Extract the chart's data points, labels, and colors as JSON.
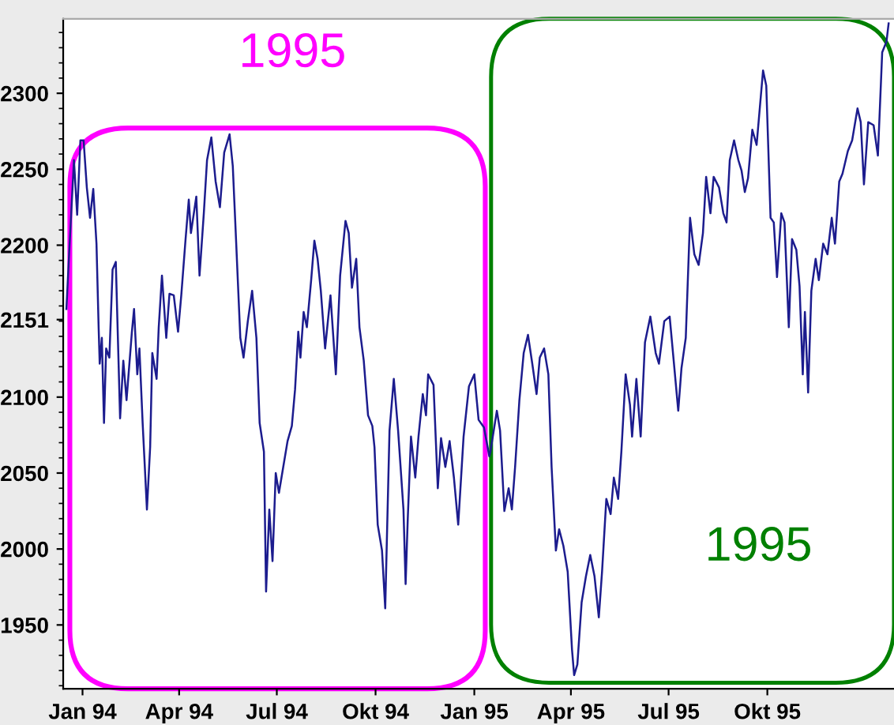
{
  "chart_data": {
    "type": "line",
    "x": [
      "1993-12-17",
      "1993-12-19",
      "1993-12-24",
      "1993-12-27",
      "1993-12-30",
      "1994-01-02",
      "1994-01-05",
      "1994-01-08",
      "1994-01-11",
      "1994-01-14",
      "1994-01-16",
      "1994-01-17",
      "1994-01-19",
      "1994-01-21",
      "1994-01-23",
      "1994-01-26",
      "1994-01-29",
      "1994-02-01",
      "1994-02-05",
      "1994-02-08",
      "1994-02-11",
      "1994-02-16",
      "1994-02-18",
      "1994-02-21",
      "1994-02-23",
      "1994-02-26",
      "1994-03-02",
      "1994-03-05",
      "1994-03-07",
      "1994-03-11",
      "1994-03-13",
      "1994-03-16",
      "1994-03-20",
      "1994-03-23",
      "1994-03-27",
      "1994-03-31",
      "1994-04-03",
      "1994-04-07",
      "1994-04-10",
      "1994-04-12",
      "1994-04-17",
      "1994-04-20",
      "1994-04-24",
      "1994-04-27",
      "1994-05-01",
      "1994-05-05",
      "1994-05-09",
      "1994-05-13",
      "1994-05-18",
      "1994-05-21",
      "1994-05-24",
      "1994-05-28",
      "1994-05-31",
      "1994-06-04",
      "1994-06-08",
      "1994-06-12",
      "1994-06-15",
      "1994-06-19",
      "1994-06-21",
      "1994-06-24",
      "1994-06-27",
      "1994-06-30",
      "1994-07-03",
      "1994-07-07",
      "1994-07-11",
      "1994-07-15",
      "1994-07-18",
      "1994-07-21",
      "1994-07-23",
      "1994-07-26",
      "1994-07-29",
      "1994-08-02",
      "1994-08-05",
      "1994-08-08",
      "1994-08-11",
      "1994-08-15",
      "1994-08-20",
      "1994-08-25",
      "1994-08-29",
      "1994-09-03",
      "1994-09-06",
      "1994-09-09",
      "1994-09-13",
      "1994-09-16",
      "1994-09-20",
      "1994-09-24",
      "1994-09-28",
      "1994-09-30",
      "1994-10-03",
      "1994-10-07",
      "1994-10-10",
      "1994-10-14",
      "1994-10-18",
      "1994-10-22",
      "1994-10-27",
      "1994-10-29",
      "1994-10-31",
      "1994-11-03",
      "1994-11-07",
      "1994-11-10",
      "1994-11-14",
      "1994-11-17",
      "1994-11-19",
      "1994-11-24",
      "1994-11-28",
      "1994-12-01",
      "1994-12-05",
      "1994-12-09",
      "1994-12-13",
      "1994-12-17",
      "1994-12-22",
      "1994-12-27",
      "1995-01-01",
      "1995-01-05",
      "1995-01-10",
      "1995-01-15",
      "1995-01-16",
      "1995-01-22",
      "1995-01-25",
      "1995-01-29",
      "1995-02-02",
      "1995-02-05",
      "1995-02-08",
      "1995-02-12",
      "1995-02-16",
      "1995-02-20",
      "1995-02-24",
      "1995-02-28",
      "1995-03-03",
      "1995-03-07",
      "1995-03-11",
      "1995-03-14",
      "1995-03-18",
      "1995-03-21",
      "1995-03-25",
      "1995-03-29",
      "1995-04-02",
      "1995-04-04",
      "1995-04-07",
      "1995-04-11",
      "1995-04-15",
      "1995-04-19",
      "1995-04-23",
      "1995-04-27",
      "1995-04-30",
      "1995-05-04",
      "1995-05-08",
      "1995-05-11",
      "1995-05-15",
      "1995-05-18",
      "1995-05-22",
      "1995-05-26",
      "1995-05-28",
      "1995-06-01",
      "1995-06-05",
      "1995-06-09",
      "1995-06-14",
      "1995-06-19",
      "1995-06-22",
      "1995-06-27",
      "1995-07-02",
      "1995-07-06",
      "1995-07-10",
      "1995-07-13",
      "1995-07-17",
      "1995-07-21",
      "1995-07-25",
      "1995-07-29",
      "1995-08-02",
      "1995-08-05",
      "1995-08-09",
      "1995-08-12",
      "1995-08-17",
      "1995-08-21",
      "1995-08-24",
      "1995-08-27",
      "1995-08-31",
      "1995-09-04",
      "1995-09-07",
      "1995-09-10",
      "1995-09-13",
      "1995-09-17",
      "1995-09-21",
      "1995-09-27",
      "1995-09-30",
      "1995-10-04",
      "1995-10-07",
      "1995-10-10",
      "1995-10-14",
      "1995-10-17",
      "1995-10-21",
      "1995-10-24",
      "1995-10-28",
      "1995-10-31",
      "1995-11-03",
      "1995-11-05",
      "1995-11-08",
      "1995-11-11",
      "1995-11-15",
      "1995-11-18",
      "1995-11-22",
      "1995-11-26",
      "1995-11-30",
      "1995-12-03",
      "1995-12-07",
      "1995-12-10",
      "1995-12-15",
      "1995-12-19",
      "1995-12-24",
      "1995-12-27",
      "1995-12-30",
      "1996-01-03",
      "1996-01-08",
      "1996-01-12",
      "1996-01-16",
      "1996-01-20",
      "1996-01-22"
    ],
    "series": [
      {
        "color": "#1c1c8e",
        "values": [
          2158,
          2187,
          2256,
          2220,
          2269,
          2269,
          2238,
          2218,
          2237,
          2201,
          2146,
          2122,
          2139,
          2083,
          2132,
          2126,
          2184,
          2189,
          2086,
          2124,
          2098,
          2143,
          2158,
          2115,
          2132,
          2083,
          2026,
          2067,
          2129,
          2112,
          2146,
          2180,
          2139,
          2168,
          2167,
          2143,
          2167,
          2204,
          2230,
          2208,
          2232,
          2180,
          2221,
          2256,
          2271,
          2242,
          2225,
          2261,
          2273,
          2252,
          2204,
          2139,
          2126,
          2150,
          2170,
          2139,
          2083,
          2064,
          1972,
          2026,
          1992,
          2050,
          2037,
          2054,
          2071,
          2081,
          2105,
          2143,
          2126,
          2156,
          2146,
          2177,
          2203,
          2191,
          2170,
          2132,
          2167,
          2115,
          2180,
          2216,
          2208,
          2172,
          2191,
          2146,
          2124,
          2088,
          2081,
          2067,
          2016,
          1999,
          1961,
          2078,
          2112,
          2078,
          2026,
          1977,
          2020,
          2074,
          2047,
          2074,
          2102,
          2088,
          2115,
          2108,
          2040,
          2073,
          2054,
          2071,
          2047,
          2016,
          2074,
          2107,
          2115,
          2085,
          2080,
          2061,
          2064,
          2091,
          2078,
          2025,
          2040,
          2026,
          2054,
          2098,
          2129,
          2141,
          2122,
          2102,
          2126,
          2132,
          2115,
          2054,
          1999,
          2013,
          2002,
          1985,
          1934,
          1917,
          1924,
          1965,
          1982,
          1996,
          1982,
          1955,
          1985,
          2033,
          2023,
          2047,
          2033,
          2064,
          2115,
          2095,
          2074,
          2112,
          2074,
          2136,
          2153,
          2129,
          2122,
          2150,
          2153,
          2122,
          2091,
          2119,
          2139,
          2218,
          2194,
          2187,
          2208,
          2245,
          2221,
          2245,
          2238,
          2221,
          2215,
          2256,
          2269,
          2256,
          2249,
          2235,
          2244,
          2276,
          2266,
          2315,
          2305,
          2218,
          2215,
          2179,
          2221,
          2215,
          2146,
          2204,
          2197,
          2173,
          2115,
          2156,
          2103,
          2170,
          2191,
          2177,
          2201,
          2194,
          2218,
          2201,
          2242,
          2247,
          2262,
          2269,
          2290,
          2281,
          2240,
          2281,
          2279,
          2259,
          2327,
          2334,
          2346
        ]
      }
    ],
    "xlim": [
      "1993-12-14",
      "1996-01-27"
    ],
    "xticks": [
      {
        "value": "1994-01-01",
        "label": "Jan 94"
      },
      {
        "value": "1994-04-01",
        "label": "Apr 94"
      },
      {
        "value": "1994-07-01",
        "label": "Jul 94"
      },
      {
        "value": "1994-10-01",
        "label": "Okt 94"
      },
      {
        "value": "1995-01-01",
        "label": "Jan 95"
      },
      {
        "value": "1995-04-01",
        "label": "Apr 95"
      },
      {
        "value": "1995-07-01",
        "label": "Jul 95"
      },
      {
        "value": "1995-10-01",
        "label": "Okt 95"
      }
    ],
    "ylim": [
      1908,
      2349
    ],
    "yticks": [
      1950,
      2000,
      2050,
      2100,
      2151,
      2200,
      2250,
      2300
    ],
    "annotations": [
      "1995",
      "1995"
    ],
    "grid": false,
    "legend": false,
    "marker": "none",
    "line_style": "solid"
  }
}
